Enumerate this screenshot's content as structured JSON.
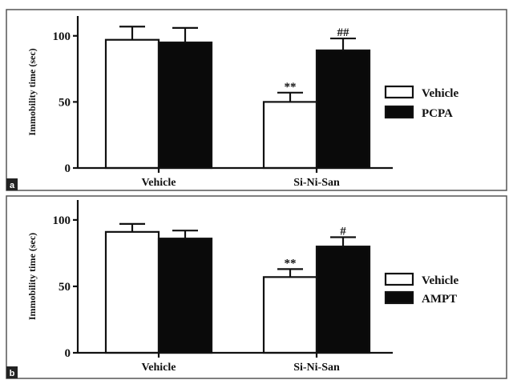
{
  "chart_data": [
    {
      "type": "bar",
      "panel_label": "a",
      "ylabel": "Immobility time (sec)",
      "categories": [
        "Vehicle",
        "Si-Ni-San"
      ],
      "yticks": [
        0,
        50,
        100
      ],
      "ylim": [
        0,
        115
      ],
      "series": [
        {
          "name": "Vehicle",
          "fill": "white",
          "values": [
            97,
            50
          ],
          "errors": [
            10,
            7
          ]
        },
        {
          "name": "PCPA",
          "fill": "black",
          "values": [
            95,
            89
          ],
          "errors": [
            11,
            9
          ]
        }
      ],
      "annotations": [
        [
          "",
          "**"
        ],
        [
          "",
          "##"
        ]
      ],
      "legend_position": "right"
    },
    {
      "type": "bar",
      "panel_label": "b",
      "ylabel": "Immobility time (sec)",
      "categories": [
        "Vehicle",
        "Si-Ni-San"
      ],
      "yticks": [
        0,
        50,
        100
      ],
      "ylim": [
        0,
        115
      ],
      "series": [
        {
          "name": "Vehicle",
          "fill": "white",
          "values": [
            91,
            57
          ],
          "errors": [
            6,
            6
          ]
        },
        {
          "name": "AMPT",
          "fill": "black",
          "values": [
            86,
            80
          ],
          "errors": [
            6,
            7
          ]
        }
      ],
      "annotations": [
        [
          "",
          "**"
        ],
        [
          "",
          "#"
        ]
      ],
      "legend_position": "right"
    }
  ]
}
